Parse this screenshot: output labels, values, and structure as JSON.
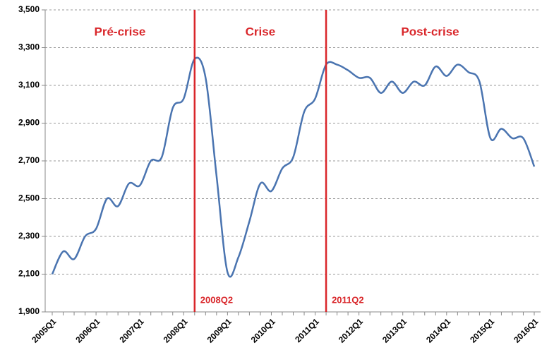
{
  "chart_data": {
    "type": "line",
    "categories": [
      "2005Q1",
      null,
      null,
      null,
      "2006Q1",
      null,
      null,
      null,
      "2007Q1",
      null,
      null,
      null,
      "2008Q1",
      null,
      null,
      null,
      "2009Q1",
      null,
      null,
      null,
      "2010Q1",
      null,
      null,
      null,
      "2011Q1",
      null,
      null,
      null,
      "2012Q1",
      null,
      null,
      null,
      "2013Q1",
      null,
      null,
      null,
      "2014Q1",
      null,
      null,
      null,
      "2015Q1",
      null,
      null,
      null,
      "2016Q1"
    ],
    "values": [
      2100,
      2220,
      2180,
      2300,
      2340,
      2500,
      2460,
      2580,
      2570,
      2700,
      2720,
      2980,
      3030,
      3240,
      3140,
      2620,
      2110,
      2190,
      2380,
      2580,
      2540,
      2660,
      2720,
      2960,
      3030,
      3210,
      3210,
      3180,
      3140,
      3140,
      3060,
      3120,
      3060,
      3120,
      3100,
      3200,
      3150,
      3210,
      3170,
      3120,
      2820,
      2870,
      2820,
      2820,
      2670
    ],
    "color": "#4a74b0",
    "ylim": [
      1900,
      3500
    ],
    "yticks": [
      {
        "value": 1900,
        "label": "1,900"
      },
      {
        "value": 2100,
        "label": "2,100"
      },
      {
        "value": 2300,
        "label": "2,300"
      },
      {
        "value": 2500,
        "label": "2,500"
      },
      {
        "value": 2700,
        "label": "2,700"
      },
      {
        "value": 2900,
        "label": "2,900"
      },
      {
        "value": 3100,
        "label": "3,100"
      },
      {
        "value": 3300,
        "label": "3,300"
      },
      {
        "value": 3500,
        "label": "3,500"
      }
    ],
    "grid": true,
    "periods": [
      "Pré-crise",
      "Crise",
      "Post-crise"
    ],
    "markers": [
      {
        "label": "2008Q2",
        "position": 13
      },
      {
        "label": "2011Q2",
        "position": 25
      }
    ],
    "marker_color": "#d9262a"
  }
}
